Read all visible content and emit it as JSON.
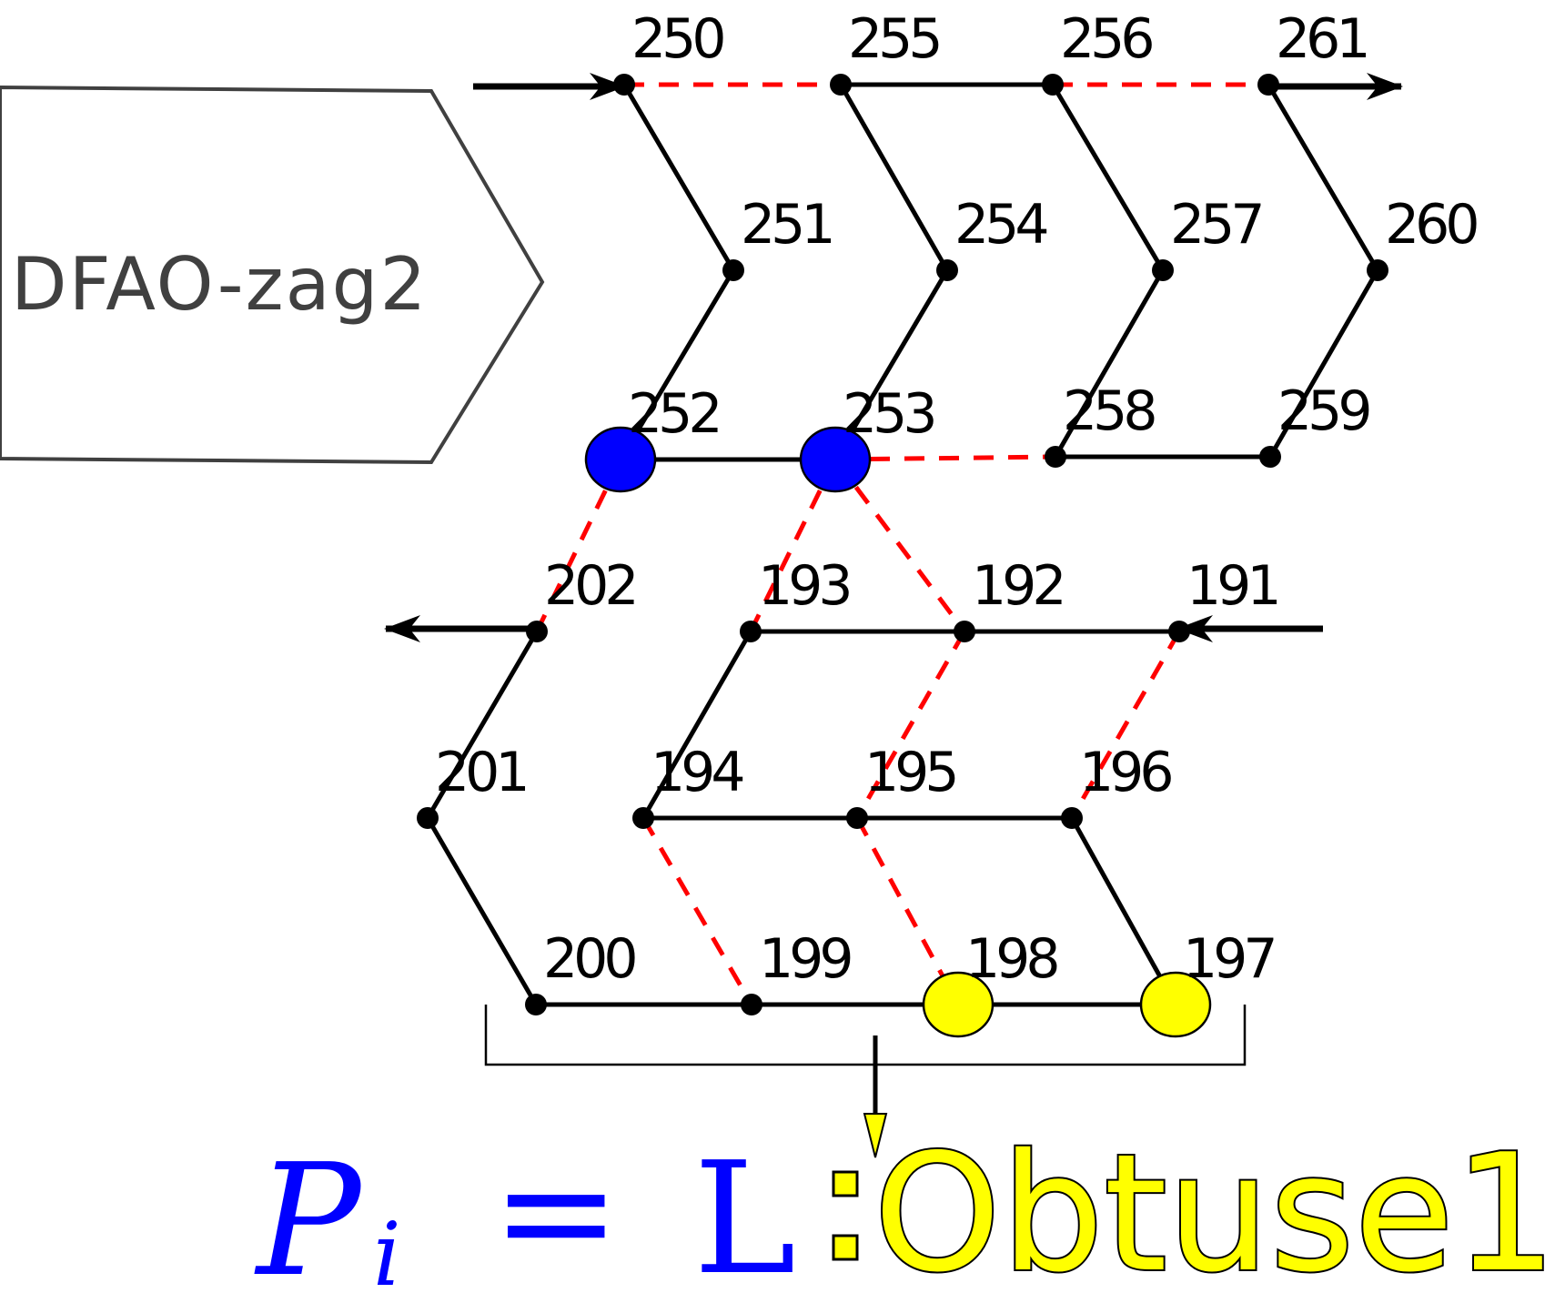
{
  "banner": {
    "label": "DFAO-zag2"
  },
  "colors": {
    "dashed": "#ff0000",
    "highlight_blue": "#0000ff",
    "highlight_yellow": "#ffff00",
    "edge": "#000000",
    "banner_stroke": "#404040"
  },
  "nodes": [
    {
      "id": "250",
      "label": "250"
    },
    {
      "id": "255",
      "label": "255"
    },
    {
      "id": "256",
      "label": "256"
    },
    {
      "id": "261",
      "label": "261"
    },
    {
      "id": "251",
      "label": "251"
    },
    {
      "id": "254",
      "label": "254"
    },
    {
      "id": "257",
      "label": "257"
    },
    {
      "id": "260",
      "label": "260"
    },
    {
      "id": "252",
      "label": "252",
      "highlight": "blue"
    },
    {
      "id": "253",
      "label": "253",
      "highlight": "blue"
    },
    {
      "id": "258",
      "label": "258"
    },
    {
      "id": "259",
      "label": "259"
    },
    {
      "id": "202",
      "label": "202"
    },
    {
      "id": "193",
      "label": "193"
    },
    {
      "id": "192",
      "label": "192"
    },
    {
      "id": "191",
      "label": "191"
    },
    {
      "id": "201",
      "label": "201"
    },
    {
      "id": "194",
      "label": "194"
    },
    {
      "id": "195",
      "label": "195"
    },
    {
      "id": "196",
      "label": "196"
    },
    {
      "id": "200",
      "label": "200"
    },
    {
      "id": "199",
      "label": "199"
    },
    {
      "id": "198",
      "label": "198",
      "highlight": "yellow"
    },
    {
      "id": "197",
      "label": "197",
      "highlight": "yellow"
    }
  ],
  "edges": [
    {
      "from": "250",
      "to": "255",
      "style": "dashed"
    },
    {
      "from": "255",
      "to": "256",
      "style": "solid"
    },
    {
      "from": "256",
      "to": "261",
      "style": "dashed"
    },
    {
      "from": "250",
      "to": "251",
      "style": "solid"
    },
    {
      "from": "251",
      "to": "252",
      "style": "solid"
    },
    {
      "from": "255",
      "to": "254",
      "style": "solid"
    },
    {
      "from": "254",
      "to": "253",
      "style": "solid"
    },
    {
      "from": "256",
      "to": "257",
      "style": "solid"
    },
    {
      "from": "257",
      "to": "258",
      "style": "solid"
    },
    {
      "from": "261",
      "to": "260",
      "style": "solid"
    },
    {
      "from": "260",
      "to": "259",
      "style": "solid"
    },
    {
      "from": "252",
      "to": "253",
      "style": "solid"
    },
    {
      "from": "253",
      "to": "258",
      "style": "dashed"
    },
    {
      "from": "258",
      "to": "259",
      "style": "solid"
    },
    {
      "from": "252",
      "to": "202",
      "style": "dashed"
    },
    {
      "from": "253",
      "to": "193",
      "style": "dashed"
    },
    {
      "from": "253",
      "to": "192",
      "style": "dashed"
    },
    {
      "from": "193",
      "to": "192",
      "style": "solid"
    },
    {
      "from": "192",
      "to": "191",
      "style": "solid"
    },
    {
      "from": "202",
      "to": "201",
      "style": "solid"
    },
    {
      "from": "201",
      "to": "200",
      "style": "solid"
    },
    {
      "from": "193",
      "to": "194",
      "style": "solid"
    },
    {
      "from": "192",
      "to": "195",
      "style": "dashed"
    },
    {
      "from": "191",
      "to": "196",
      "style": "dashed"
    },
    {
      "from": "194",
      "to": "195",
      "style": "solid"
    },
    {
      "from": "195",
      "to": "196",
      "style": "solid"
    },
    {
      "from": "194",
      "to": "199",
      "style": "dashed"
    },
    {
      "from": "195",
      "to": "198",
      "style": "dashed"
    },
    {
      "from": "196",
      "to": "197",
      "style": "solid"
    },
    {
      "from": "200",
      "to": "199",
      "style": "solid"
    },
    {
      "from": "199",
      "to": "198",
      "style": "solid"
    },
    {
      "from": "198",
      "to": "197",
      "style": "solid"
    }
  ],
  "formula": {
    "symbol": "P",
    "subscript": "i",
    "equals": "=",
    "value": "L",
    "separator": ":",
    "result": "Obtuse1"
  }
}
